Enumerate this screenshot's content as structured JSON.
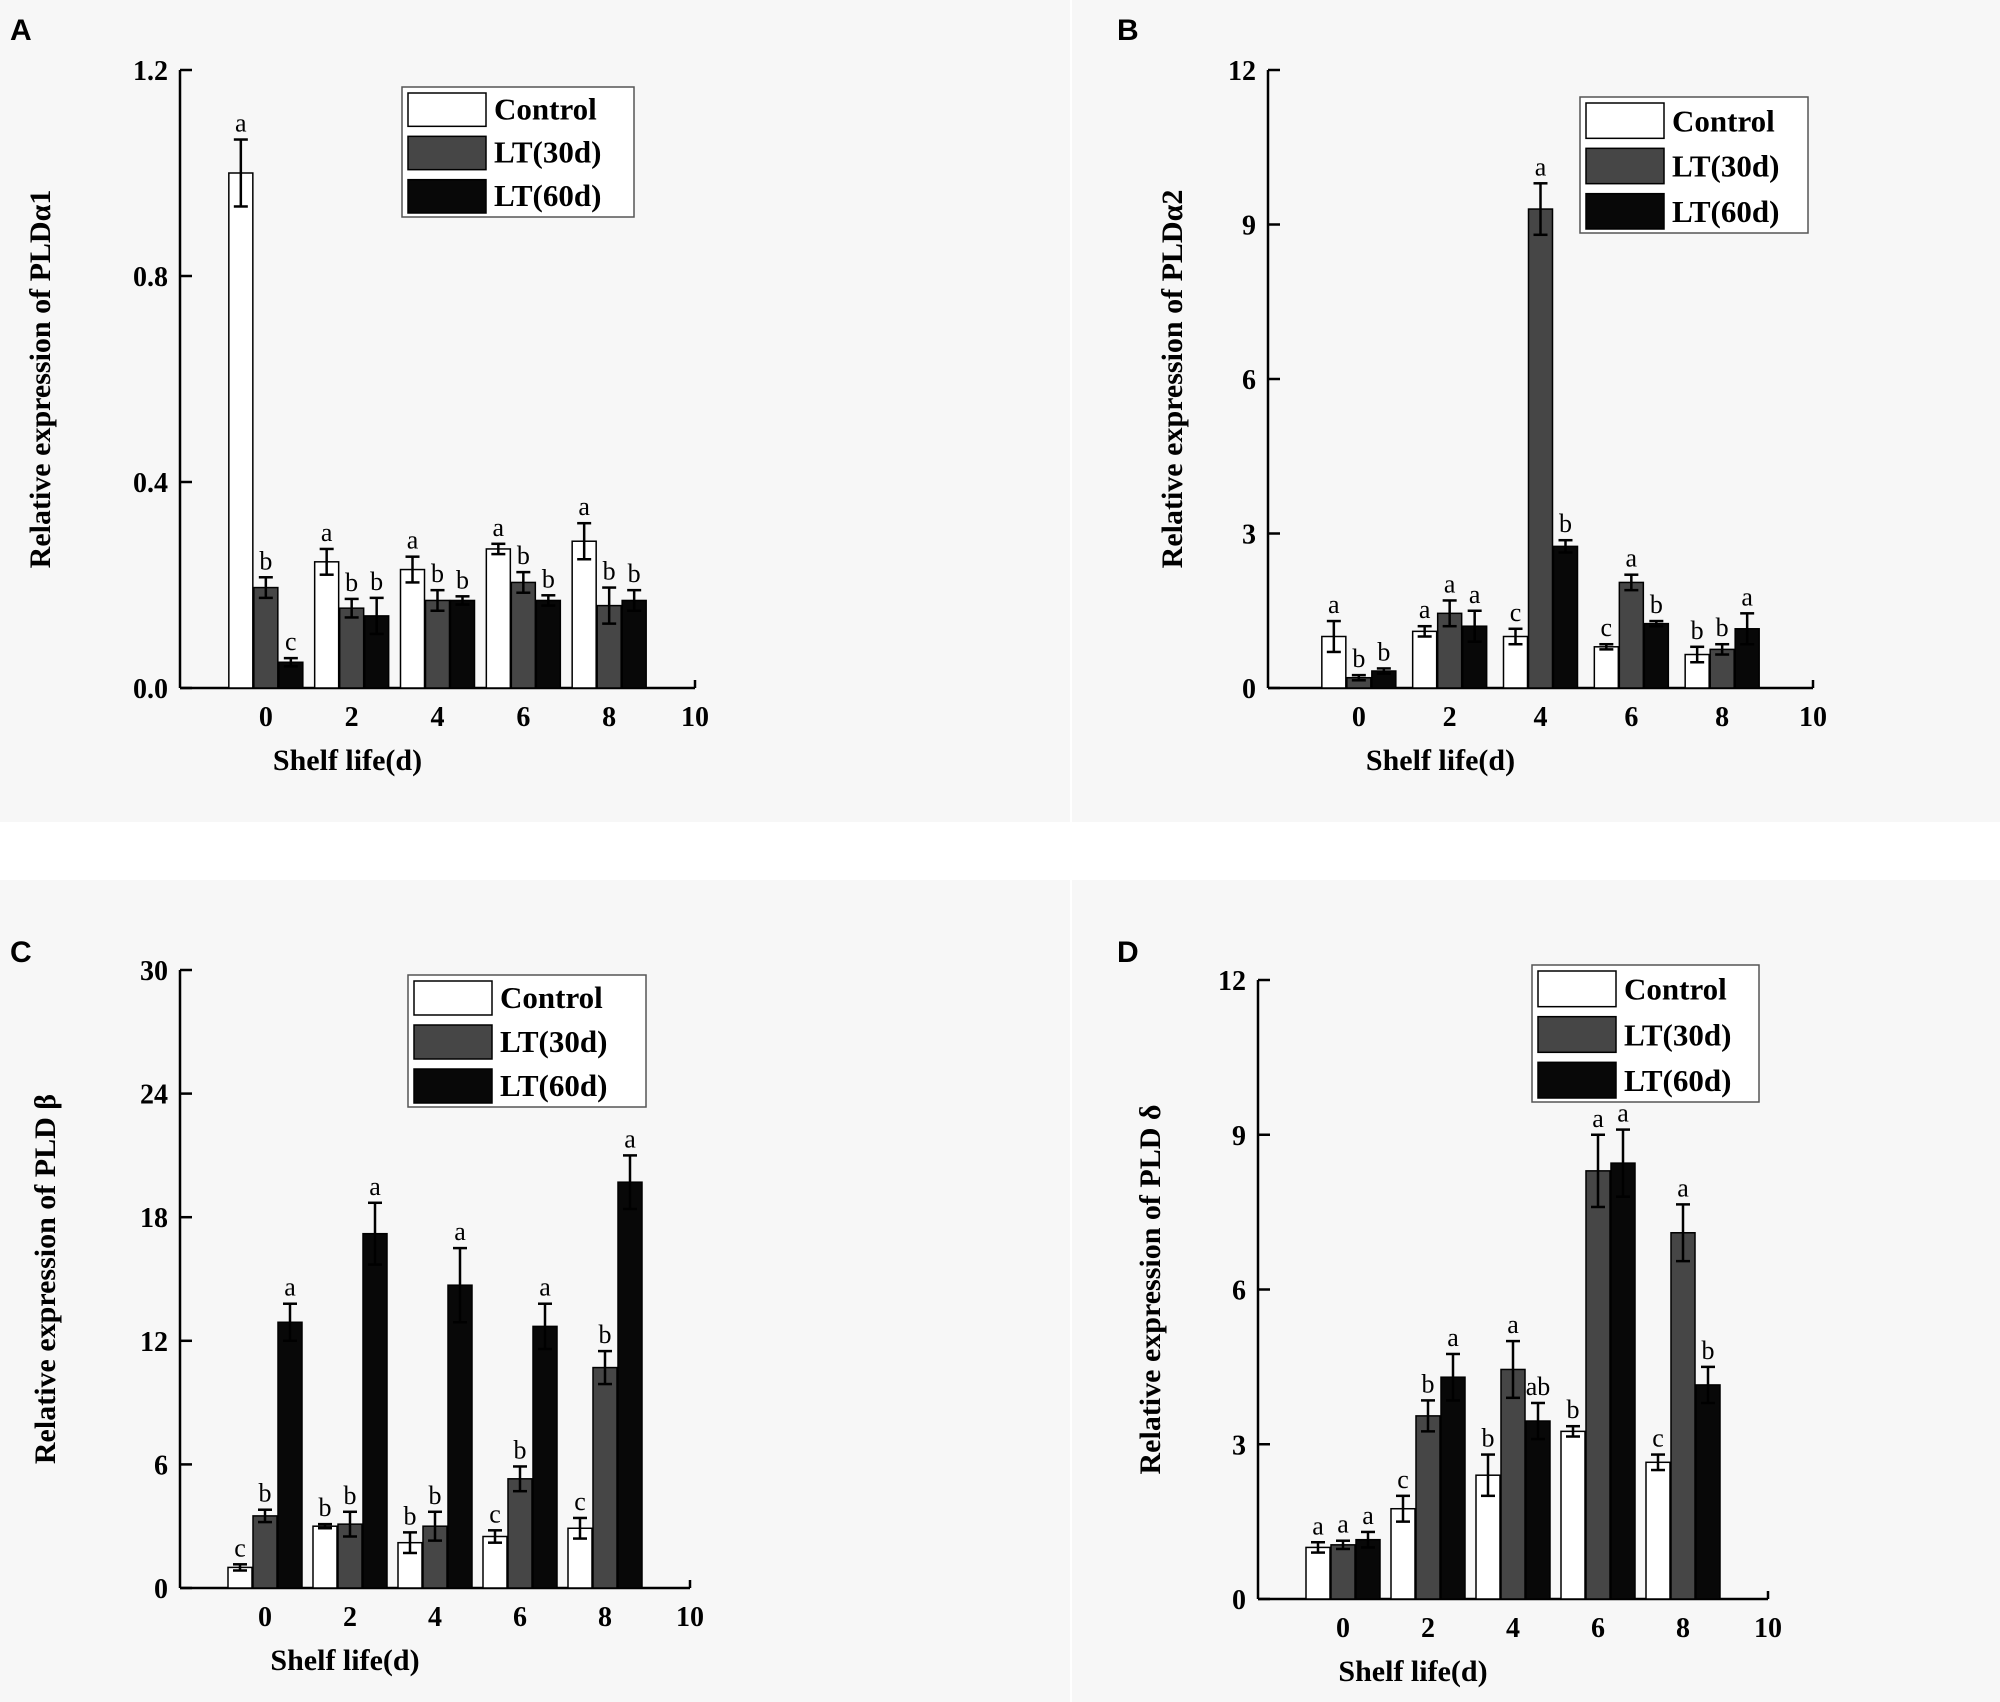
{
  "series_colors": [
    "#ffffff",
    "#464646",
    "#080808"
  ],
  "chart_data": [
    {
      "type": "bar",
      "panel_label": "A",
      "ylabel": "Relative  expression of  PLDα1",
      "xlabel": "Shelf life(d)",
      "x_ticks": [
        "0",
        "2",
        "4",
        "6",
        "8",
        "10"
      ],
      "y_ticks": [
        "0.0",
        "0.4",
        "0.8",
        "1.2"
      ],
      "ylim": [
        0,
        1.2
      ],
      "xlim": [
        -2,
        10
      ],
      "categories": [
        0,
        2,
        4,
        6,
        8
      ],
      "legend": [
        "Control",
        "LT(30d)",
        "LT(60d)"
      ],
      "series": [
        {
          "name": "Control",
          "values": [
            1.0,
            0.245,
            0.23,
            0.27,
            0.285
          ],
          "errors": [
            0.065,
            0.025,
            0.025,
            0.01,
            0.035
          ],
          "labels": [
            "a",
            "a",
            "a",
            "a",
            "a"
          ]
        },
        {
          "name": "LT(30d)",
          "values": [
            0.195,
            0.155,
            0.17,
            0.205,
            0.16
          ],
          "errors": [
            0.02,
            0.018,
            0.02,
            0.02,
            0.035
          ],
          "labels": [
            "b",
            "b",
            "b",
            "b",
            "b"
          ]
        },
        {
          "name": "LT(60d)",
          "values": [
            0.05,
            0.14,
            0.17,
            0.17,
            0.17
          ],
          "errors": [
            0.008,
            0.035,
            0.008,
            0.01,
            0.02
          ],
          "labels": [
            "c",
            "b",
            "b",
            "b",
            "b"
          ]
        }
      ]
    },
    {
      "type": "bar",
      "panel_label": "B",
      "ylabel": "Relative  expression of  PLDα2",
      "xlabel": "Shelf life(d)",
      "x_ticks": [
        "0",
        "2",
        "4",
        "6",
        "8",
        "10"
      ],
      "y_ticks": [
        "0",
        "3",
        "6",
        "9",
        "12"
      ],
      "ylim": [
        0,
        12
      ],
      "xlim": [
        -2,
        10
      ],
      "categories": [
        0,
        2,
        4,
        6,
        8
      ],
      "legend": [
        "Control",
        "LT(30d)",
        "LT(60d)"
      ],
      "series": [
        {
          "name": "Control",
          "values": [
            1.0,
            1.1,
            1.0,
            0.8,
            0.65
          ],
          "errors": [
            0.3,
            0.1,
            0.15,
            0.05,
            0.15
          ],
          "labels": [
            "a",
            "a",
            "c",
            "c",
            "b"
          ]
        },
        {
          "name": "LT(30d)",
          "values": [
            0.2,
            1.45,
            9.3,
            2.05,
            0.75
          ],
          "errors": [
            0.05,
            0.25,
            0.5,
            0.15,
            0.1
          ],
          "labels": [
            "b",
            "a",
            "a",
            "a",
            "b"
          ]
        },
        {
          "name": "LT(60d)",
          "values": [
            0.33,
            1.2,
            2.75,
            1.25,
            1.15
          ],
          "errors": [
            0.05,
            0.3,
            0.12,
            0.05,
            0.3
          ],
          "labels": [
            "b",
            "a",
            "b",
            "b",
            "a"
          ]
        }
      ]
    },
    {
      "type": "bar",
      "panel_label": "C",
      "ylabel": "Relative  expression of  PLD β",
      "xlabel": "Shelf life(d)",
      "x_ticks": [
        "0",
        "2",
        "4",
        "6",
        "8",
        "10"
      ],
      "y_ticks": [
        "0",
        "6",
        "12",
        "18",
        "24",
        "30"
      ],
      "ylim": [
        0,
        30
      ],
      "xlim": [
        -2,
        10
      ],
      "categories": [
        0,
        2,
        4,
        6,
        8
      ],
      "legend": [
        "Control",
        "LT(30d)",
        "LT(60d)"
      ],
      "series": [
        {
          "name": "Control",
          "values": [
            1.0,
            3.0,
            2.2,
            2.5,
            2.9
          ],
          "errors": [
            0.15,
            0.1,
            0.5,
            0.3,
            0.5
          ],
          "labels": [
            "c",
            "b",
            "b",
            "c",
            "c"
          ]
        },
        {
          "name": "LT(30d)",
          "values": [
            3.5,
            3.1,
            3.0,
            5.3,
            10.7
          ],
          "errors": [
            0.3,
            0.6,
            0.7,
            0.6,
            0.8
          ],
          "labels": [
            "b",
            "b",
            "b",
            "b",
            "b"
          ]
        },
        {
          "name": "LT(60d)",
          "values": [
            12.9,
            17.2,
            14.7,
            12.7,
            19.7
          ],
          "errors": [
            0.9,
            1.5,
            1.8,
            1.1,
            1.3
          ],
          "labels": [
            "a",
            "a",
            "a",
            "a",
            "a"
          ]
        }
      ]
    },
    {
      "type": "bar",
      "panel_label": "D",
      "ylabel": "Relative  expression of  PLD δ",
      "xlabel": "Shelf life(d)",
      "x_ticks": [
        "0",
        "2",
        "4",
        "6",
        "8",
        "10"
      ],
      "y_ticks": [
        "0",
        "3",
        "6",
        "9",
        "12"
      ],
      "ylim": [
        0,
        12
      ],
      "xlim": [
        -2,
        10
      ],
      "categories": [
        0,
        2,
        4,
        6,
        8
      ],
      "legend": [
        "Control",
        "LT(30d)",
        "LT(60d)"
      ],
      "series": [
        {
          "name": "Control",
          "values": [
            1.0,
            1.75,
            2.4,
            3.25,
            2.65
          ],
          "errors": [
            0.1,
            0.25,
            0.4,
            0.1,
            0.15
          ],
          "labels": [
            "a",
            "c",
            "b",
            "b",
            "c"
          ]
        },
        {
          "name": "LT(30d)",
          "values": [
            1.05,
            3.55,
            4.45,
            8.3,
            7.1
          ],
          "errors": [
            0.08,
            0.3,
            0.55,
            0.7,
            0.55
          ],
          "labels": [
            "a",
            "b",
            "a",
            "a",
            "a"
          ]
        },
        {
          "name": "LT(60d)",
          "values": [
            1.15,
            4.3,
            3.45,
            8.45,
            4.15
          ],
          "errors": [
            0.15,
            0.45,
            0.35,
            0.65,
            0.35
          ],
          "labels": [
            "a",
            "a",
            "ab",
            "a",
            "b"
          ]
        }
      ]
    }
  ]
}
